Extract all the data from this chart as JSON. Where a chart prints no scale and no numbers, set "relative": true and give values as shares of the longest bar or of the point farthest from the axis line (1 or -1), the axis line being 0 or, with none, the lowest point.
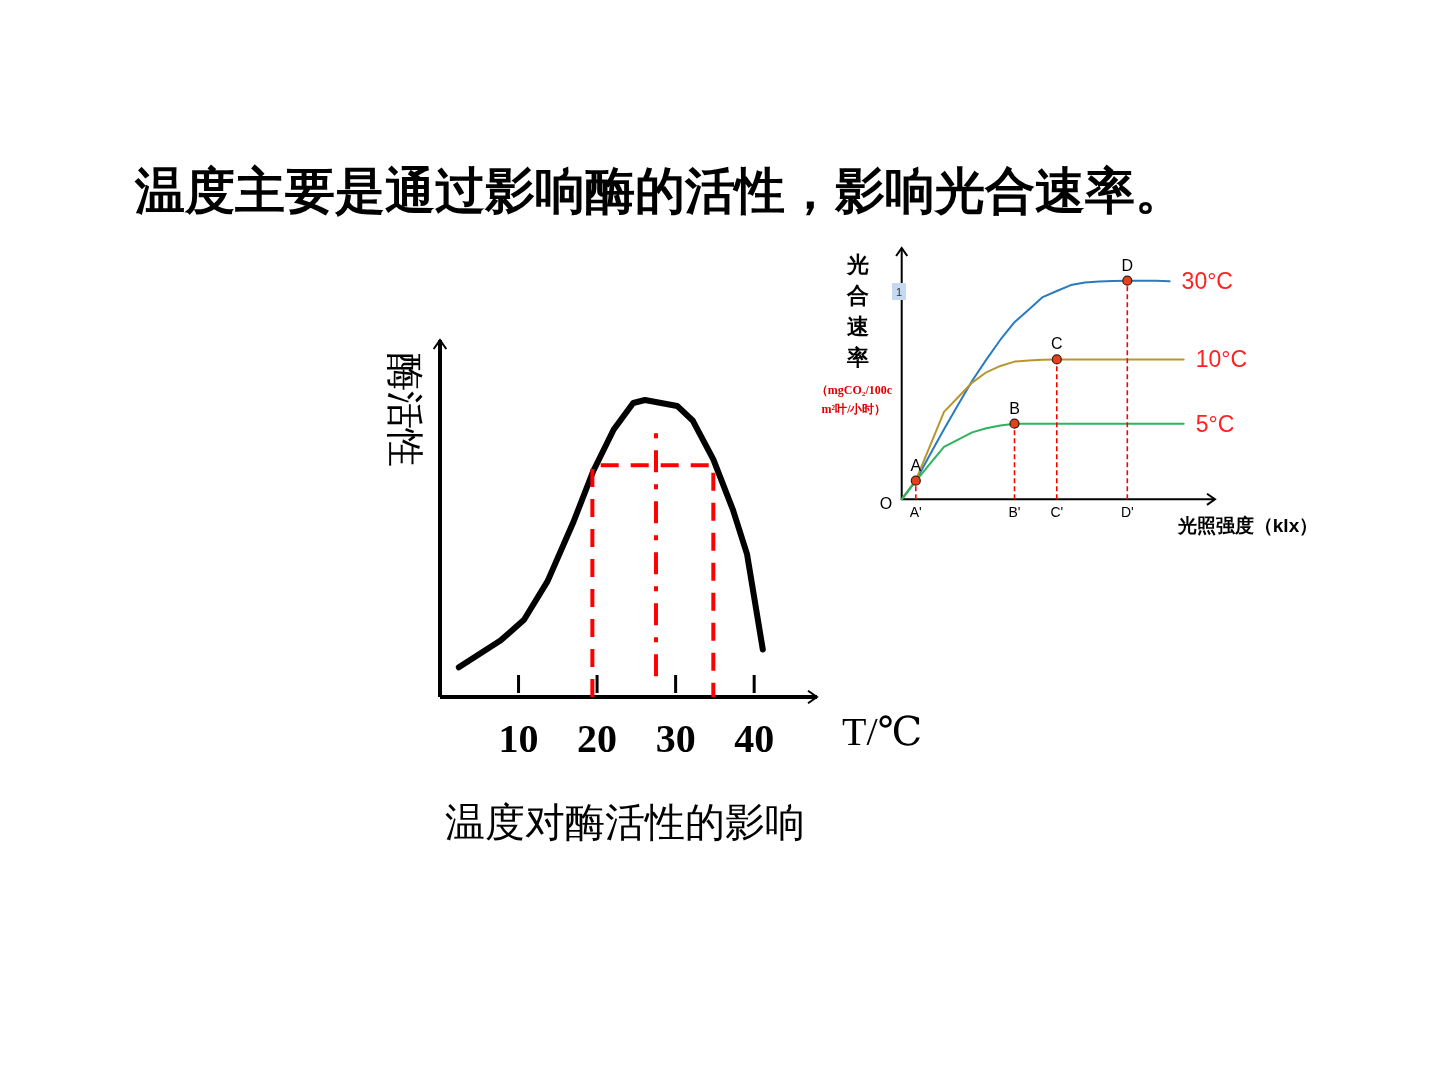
{
  "chart_data": [
    {
      "type": "line",
      "title": "温度主要是通过影响酶的活性，影响光合速率。",
      "xlabel": "T/℃",
      "ylabel": "酶活性",
      "annotations": [
        "温度对酶活性的影响"
      ],
      "relative": true,
      "xlim": [
        0,
        48
      ],
      "xticks": [
        10,
        20,
        30,
        40
      ],
      "series": [
        {
          "color": "#000000",
          "x": [
            2.4,
            7.7,
            10.7,
            13.7,
            17.0,
            19.5,
            22.1,
            24.6,
            26.1,
            30.2,
            32.2,
            34.8,
            37.3,
            39.1,
            41.1
          ],
          "values": [
            0.1,
            0.19,
            0.26,
            0.39,
            0.59,
            0.76,
            0.9,
            0.99,
            1.0,
            0.98,
            0.93,
            0.8,
            0.63,
            0.48,
            0.16
          ]
        },
        {
          "color": "#ff0000",
          "line_style": "dashed",
          "x": [
            19.4,
            19.4,
            34.8,
            34.8
          ],
          "values": [
            0,
            0.78,
            0.78,
            0
          ]
        },
        {
          "color": "#ff0000",
          "line_style": "dashdot",
          "x": [
            27.5,
            27.5
          ],
          "values": [
            0.07,
            0.9
          ]
        }
      ]
    },
    {
      "type": "line",
      "xlabel": "光照强度（klx）",
      "ylabel": "光合速率",
      "relative": true,
      "categories": [
        null,
        "A'",
        null,
        null,
        null,
        null,
        null,
        null,
        "B'",
        null,
        null,
        "C'",
        null,
        null,
        null,
        null,
        "D'",
        null,
        null,
        null,
        null
      ],
      "annotations": [
        "O",
        "（mgCO₂/100cm²叶/小时）",
        "1",
        {
          "text": "A",
          "x": "A'",
          "y": 0.085
        },
        {
          "text": "B",
          "x": "B'",
          "y": 0.346
        },
        {
          "text": "C",
          "x": "C'",
          "y": 0.64
        },
        {
          "text": "D",
          "x": "D'",
          "y": 1.0
        }
      ],
      "series": [
        {
          "name": "30°C",
          "color": "#2a7bbd",
          "values": [
            0,
            0.085,
            0.204,
            0.32,
            0.432,
            0.542,
            0.639,
            0.73,
            0.81,
            0.867,
            0.925,
            0.953,
            0.98,
            0.992,
            0.996,
            0.999,
            1.0,
            1.0,
            1.0,
            0.997,
            null
          ]
        },
        {
          "name": "10°C",
          "color": "#b8962e",
          "values": [
            0,
            0.087,
            0.243,
            0.4,
            0.467,
            0.534,
            0.581,
            0.61,
            0.63,
            0.635,
            0.638,
            0.64,
            0.64,
            0.64,
            0.64,
            0.64,
            0.64,
            0.64,
            0.64,
            0.64,
            0.64
          ]
        },
        {
          "name": "5°C",
          "color": "#2db35d",
          "values": [
            0,
            0.083,
            0.162,
            0.24,
            0.273,
            0.306,
            0.325,
            0.338,
            0.346,
            0.346,
            0.346,
            0.346,
            0.346,
            0.346,
            0.346,
            0.346,
            0.346,
            0.346,
            0.346,
            0.346,
            0.346
          ]
        },
        {
          "type": "lollipop",
          "marker": "circle",
          "line_style": "dashed",
          "color": "#e8401c",
          "values": [
            null,
            0.085,
            null,
            null,
            null,
            null,
            null,
            null,
            0.346,
            null,
            null,
            0.64,
            null,
            null,
            null,
            null,
            1.0,
            null,
            null,
            null,
            null
          ]
        }
      ]
    }
  ]
}
